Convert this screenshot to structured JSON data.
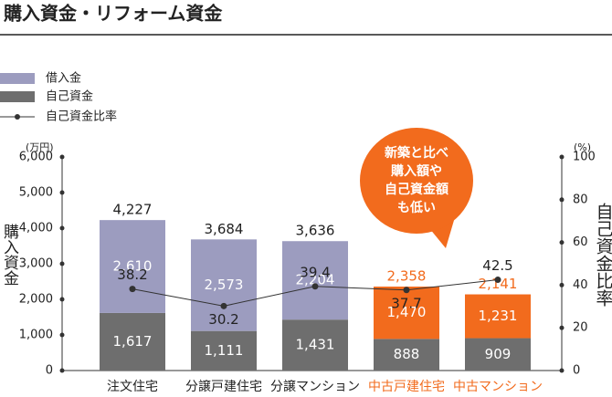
{
  "chart_data": {
    "type": "stacked-bar-line",
    "title": "購入資金・リフォーム資金",
    "categories": [
      "注文住宅",
      "分譲戸建住宅",
      "分譲マンション",
      "中古戸建住宅",
      "中古マンション"
    ],
    "category_colors": [
      "#222222",
      "#222222",
      "#222222",
      "#f26b1d",
      "#f26b1d"
    ],
    "series": [
      {
        "name": "自己資金",
        "color": "#6e6e6e",
        "values": [
          1617,
          1111,
          1431,
          888,
          909
        ],
        "value_labels": [
          "1,617",
          "1,111",
          "1,431",
          "888",
          "909"
        ]
      },
      {
        "name": "借入金",
        "color": "#9c9cbf",
        "colors": [
          "#9c9cbf",
          "#9c9cbf",
          "#9c9cbf",
          "#f26b1d",
          "#f26b1d"
        ],
        "values": [
          2610,
          2573,
          2204,
          1470,
          1231
        ],
        "value_labels": [
          "2,610",
          "2,573",
          "2,204",
          "1,470",
          "1,231"
        ]
      },
      {
        "name": "自己資金比率",
        "color": "#333333",
        "axis": "y2",
        "values": [
          38.2,
          30.2,
          39.4,
          37.7,
          42.5
        ]
      }
    ],
    "totals": {
      "values": [
        4227,
        3684,
        3636,
        2358,
        2141
      ],
      "value_labels": [
        "4,227",
        "3,684",
        "3,636",
        "2,358",
        "2,141"
      ]
    },
    "ylabel": "購入資金",
    "yunit": "(万円)",
    "y2label": "自己資金比率",
    "y2unit": "(%)",
    "ylim": [
      0,
      6000
    ],
    "yticks": [
      0,
      {
        "value": 1000,
        "label": "1,000"
      },
      {
        "value": 2000,
        "label": "2,000"
      },
      {
        "value": 3000,
        "label": "3,000"
      },
      {
        "value": 4000,
        "label": "4,000"
      },
      {
        "value": 5000,
        "label": "5,000"
      },
      {
        "value": 6000,
        "label": "6,000"
      }
    ],
    "y2lim": [
      0,
      100
    ],
    "y2ticks": [
      0,
      20,
      40,
      60,
      80,
      100
    ],
    "grid": false,
    "annotation": {
      "lines": [
        "新築と比べ",
        "購入額や",
        "自己資金額",
        "も低い"
      ],
      "color": "#f26b1d"
    }
  }
}
